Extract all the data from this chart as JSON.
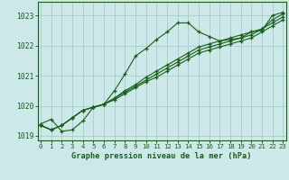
{
  "title": "Graphe pression niveau de la mer (hPa)",
  "background_color": "#cce8e8",
  "grid_color": "#aacccc",
  "line_color": "#1a5e1a",
  "xlim": [
    -0.3,
    23.3
  ],
  "ylim": [
    1018.85,
    1023.45
  ],
  "yticks": [
    1019,
    1020,
    1021,
    1022,
    1023
  ],
  "xticks": [
    0,
    1,
    2,
    3,
    4,
    5,
    6,
    7,
    8,
    9,
    10,
    11,
    12,
    13,
    14,
    15,
    16,
    17,
    18,
    19,
    20,
    21,
    22,
    23
  ],
  "series": [
    [
      1019.4,
      1019.55,
      1019.15,
      1019.2,
      1019.5,
      1019.95,
      1020.05,
      1020.5,
      1021.05,
      1021.65,
      1021.9,
      1022.2,
      1022.45,
      1022.75,
      1022.75,
      1022.45,
      1022.3,
      1022.15,
      1022.2,
      1022.25,
      1022.45,
      1022.5,
      1023.0,
      1023.1
    ],
    [
      1019.35,
      1019.2,
      1019.35,
      1019.6,
      1019.85,
      1019.95,
      1020.05,
      1020.25,
      1020.5,
      1020.7,
      1020.95,
      1021.15,
      1021.35,
      1021.55,
      1021.75,
      1021.95,
      1022.05,
      1022.15,
      1022.25,
      1022.35,
      1022.45,
      1022.55,
      1022.85,
      1023.05
    ],
    [
      1019.35,
      1019.2,
      1019.35,
      1019.6,
      1019.85,
      1019.95,
      1020.05,
      1020.25,
      1020.45,
      1020.65,
      1020.85,
      1021.05,
      1021.25,
      1021.45,
      1021.65,
      1021.85,
      1021.95,
      1022.05,
      1022.15,
      1022.25,
      1022.35,
      1022.55,
      1022.75,
      1022.95
    ],
    [
      1019.35,
      1019.2,
      1019.35,
      1019.6,
      1019.85,
      1019.95,
      1020.05,
      1020.2,
      1020.4,
      1020.6,
      1020.8,
      1020.95,
      1021.15,
      1021.35,
      1021.55,
      1021.75,
      1021.85,
      1021.95,
      1022.05,
      1022.15,
      1022.25,
      1022.45,
      1022.65,
      1022.85
    ]
  ]
}
